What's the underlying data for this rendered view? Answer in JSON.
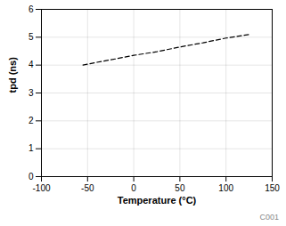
{
  "chart_data": {
    "type": "line",
    "x": [
      -55,
      -40,
      -20,
      0,
      25,
      50,
      75,
      100,
      125
    ],
    "values": [
      4.0,
      4.1,
      4.22,
      4.35,
      4.48,
      4.65,
      4.8,
      4.97,
      5.1
    ],
    "color": "#000000",
    "line_style": "dashed",
    "xlabel": "Temperature (°C)",
    "ylabel": "tpd (ns)",
    "xlim": [
      -100,
      150
    ],
    "ylim": [
      0,
      6
    ],
    "xticks": [
      -100,
      -50,
      0,
      50,
      100,
      150
    ],
    "yticks": [
      0,
      1,
      2,
      3,
      4,
      5,
      6
    ],
    "grid": true,
    "annotations": [
      "C001"
    ]
  }
}
